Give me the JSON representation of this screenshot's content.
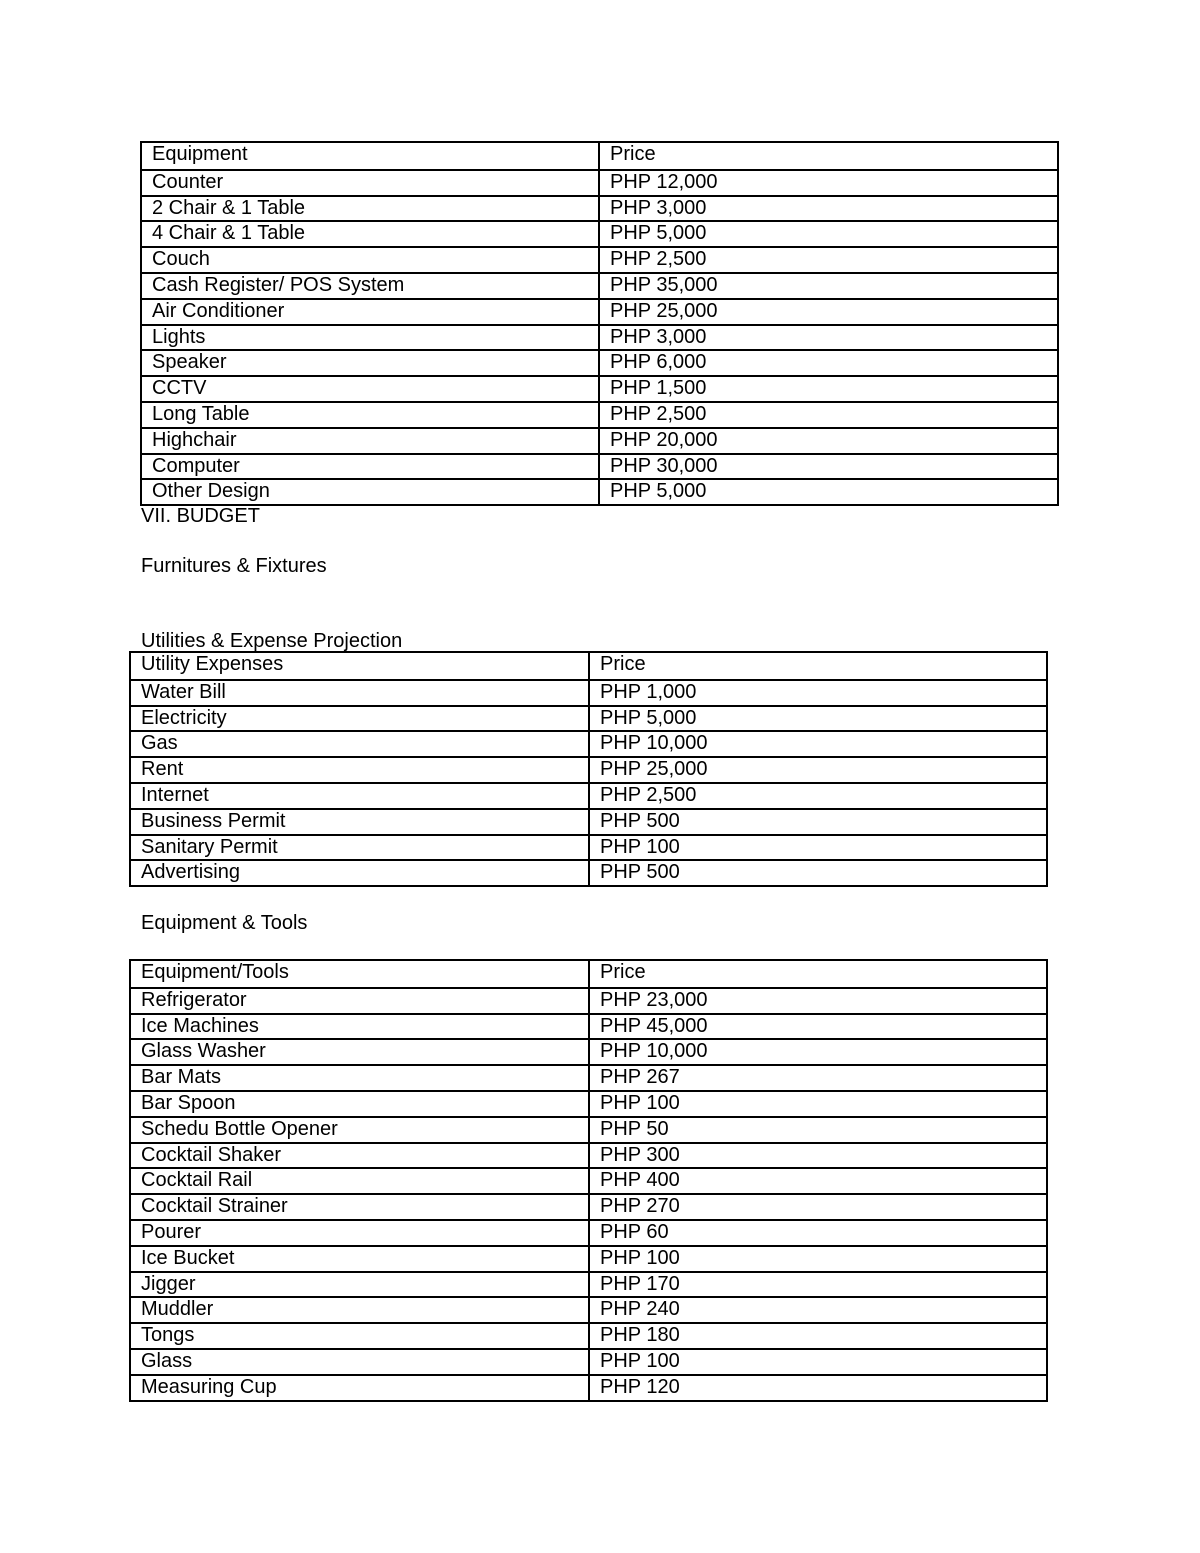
{
  "furniture_table": {
    "headers": [
      "Equipment",
      "Price"
    ],
    "rows": [
      [
        "Counter",
        "PHP 12,000"
      ],
      [
        "2 Chair & 1 Table",
        "PHP 3,000"
      ],
      [
        "4 Chair & 1 Table",
        "PHP 5,000"
      ],
      [
        "Couch",
        "PHP 2,500"
      ],
      [
        "Cash Register/ POS System",
        "PHP 35,000"
      ],
      [
        "Air Conditioner",
        "PHP 25,000"
      ],
      [
        "Lights",
        "PHP 3,000"
      ],
      [
        "Speaker",
        "PHP 6,000"
      ],
      [
        "CCTV",
        "PHP 1,500"
      ],
      [
        "Long Table",
        "PHP 2,500"
      ],
      [
        "Highchair",
        "PHP 20,000"
      ],
      [
        "Computer",
        "PHP 30,000"
      ],
      [
        "Other Design",
        "PHP 5,000"
      ]
    ]
  },
  "section_title": "VII. BUDGET",
  "furnitures_heading": "Furnitures & Fixtures",
  "utilities_heading": "Utilities & Expense Projection",
  "utilities_table": {
    "headers": [
      "Utility Expenses",
      "Price"
    ],
    "rows": [
      [
        "Water Bill",
        "PHP 1,000"
      ],
      [
        "Electricity",
        "PHP 5,000"
      ],
      [
        "Gas",
        "PHP 10,000"
      ],
      [
        "Rent",
        "PHP 25,000"
      ],
      [
        "Internet",
        "PHP 2,500"
      ],
      [
        "Business Permit",
        "PHP 500"
      ],
      [
        "Sanitary Permit",
        "PHP 100"
      ],
      [
        "Advertising",
        "PHP 500"
      ]
    ]
  },
  "equipment_heading": "Equipment & Tools",
  "equipment_table": {
    "headers": [
      "Equipment/Tools",
      "Price"
    ],
    "rows": [
      [
        "Refrigerator",
        "PHP 23,000"
      ],
      [
        "Ice Machines",
        "PHP 45,000"
      ],
      [
        "Glass Washer",
        "PHP 10,000"
      ],
      [
        "Bar Mats",
        "PHP 267"
      ],
      [
        "Bar Spoon",
        "PHP 100"
      ],
      [
        "Schedu Bottle Opener",
        "PHP 50"
      ],
      [
        "Cocktail Shaker",
        "PHP 300"
      ],
      [
        "Cocktail Rail",
        "PHP 400"
      ],
      [
        "Cocktail Strainer",
        "PHP 270"
      ],
      [
        "Pourer",
        "PHP 60"
      ],
      [
        "Ice Bucket",
        "PHP 100"
      ],
      [
        "Jigger",
        "PHP 170"
      ],
      [
        "Muddler",
        "PHP 240"
      ],
      [
        "Tongs",
        "PHP 180"
      ],
      [
        "Glass",
        "PHP 100"
      ],
      [
        "Measuring Cup",
        "PHP 120"
      ]
    ]
  }
}
